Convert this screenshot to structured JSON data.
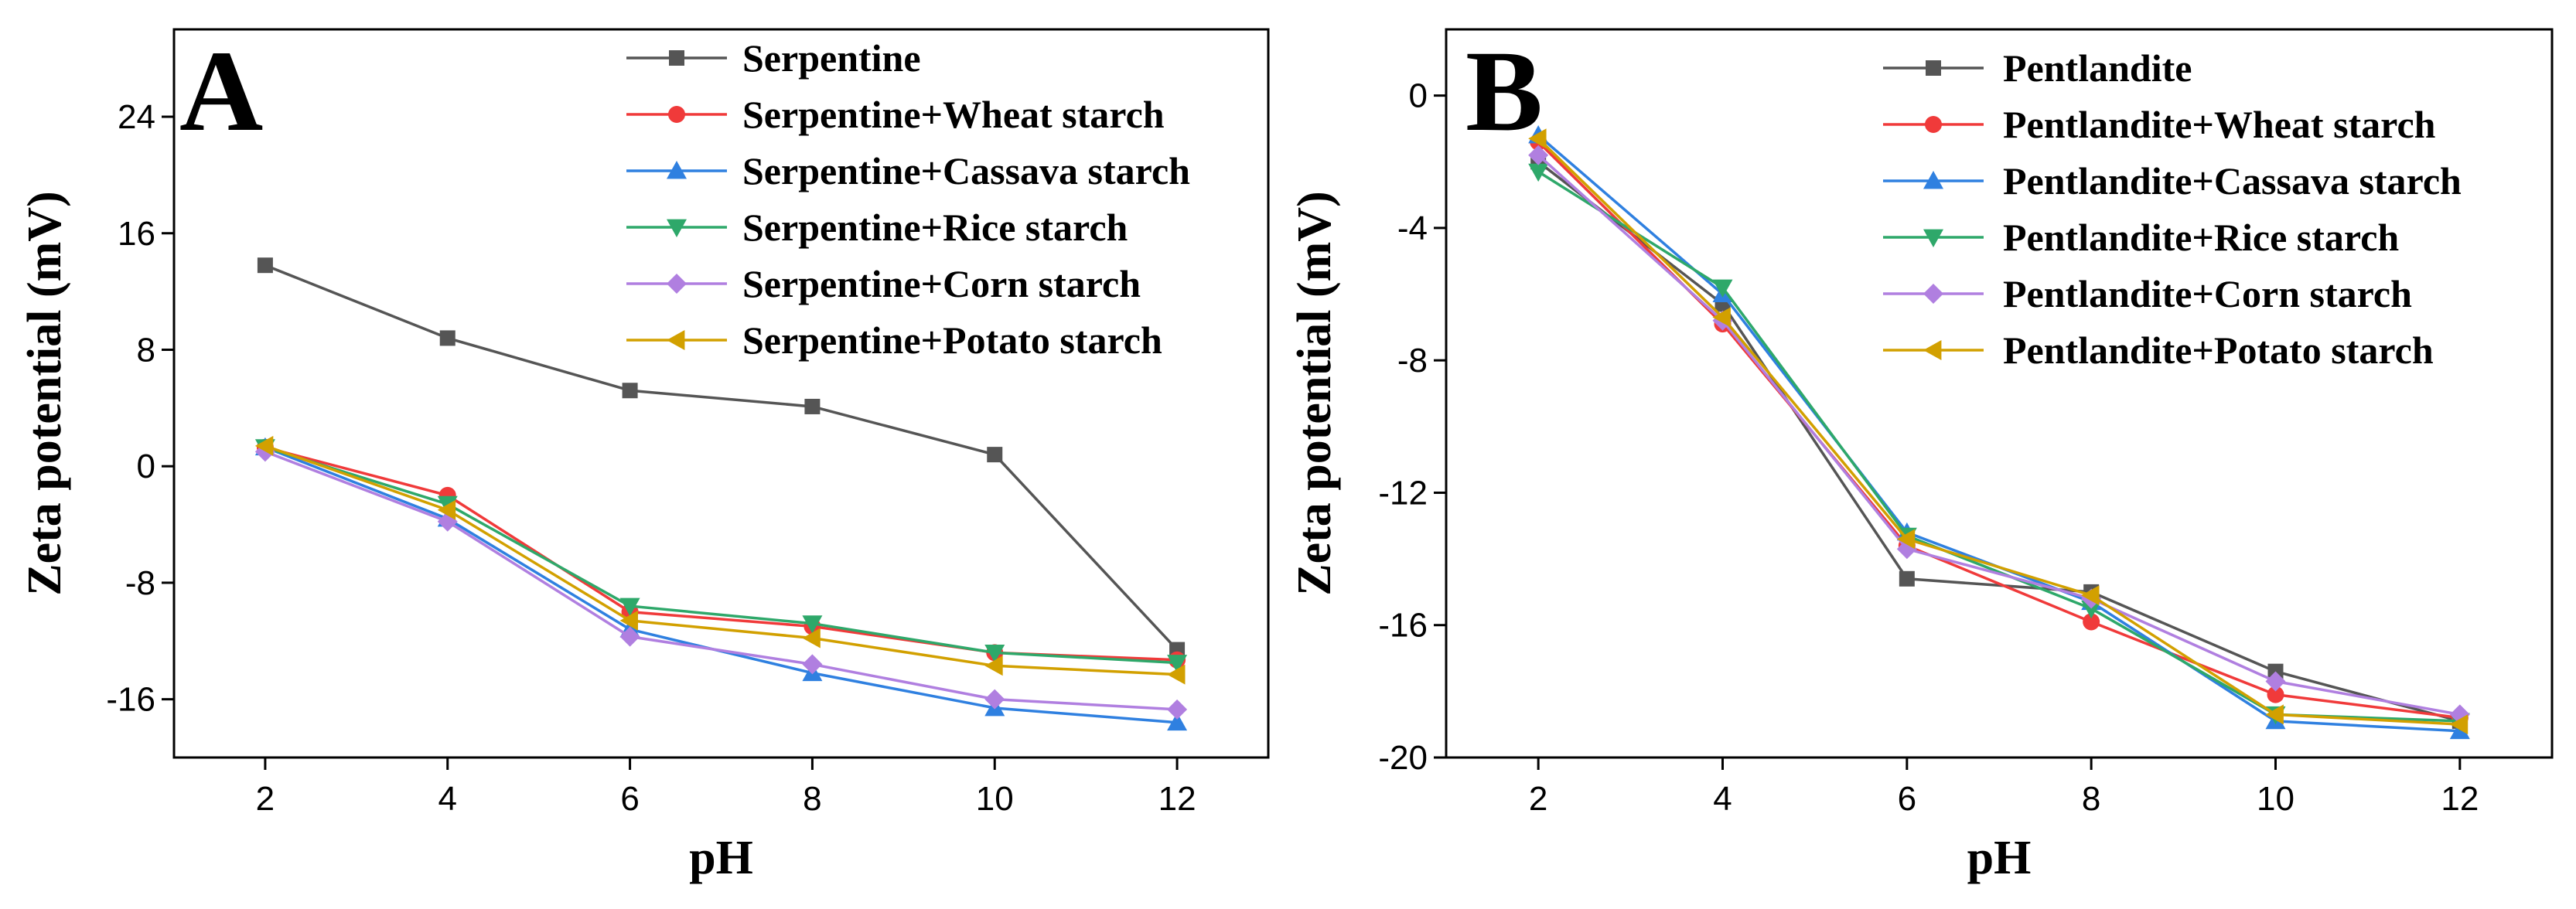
{
  "chart_data": [
    {
      "type": "line",
      "panel_label": "A",
      "title": "",
      "xlabel": "pH",
      "ylabel": "Zeta potential (mV)",
      "xlim": [
        1,
        13
      ],
      "ylim": [
        -20,
        30
      ],
      "xticks": [
        2,
        4,
        6,
        8,
        10,
        12
      ],
      "yticks": [
        -16,
        -8,
        0,
        8,
        16,
        24
      ],
      "legend_position": "top-right",
      "x": [
        2,
        4,
        6,
        8,
        10,
        12
      ],
      "series": [
        {
          "name": "Serpentine",
          "color": "#555555",
          "marker": "square",
          "values": [
            13.8,
            8.8,
            5.2,
            4.1,
            0.8,
            -12.6
          ]
        },
        {
          "name": "Serpentine+Wheat starch",
          "color": "#f03a3a",
          "marker": "circle",
          "values": [
            1.3,
            -2.0,
            -10.0,
            -11.0,
            -12.8,
            -13.3
          ]
        },
        {
          "name": "Serpentine+Cassava starch",
          "color": "#2f80e0",
          "marker": "triangle-up",
          "values": [
            1.3,
            -3.6,
            -11.2,
            -14.2,
            -16.6,
            -17.6
          ]
        },
        {
          "name": "Serpentine+Rice starch",
          "color": "#2ea86a",
          "marker": "triangle-down",
          "values": [
            1.3,
            -2.6,
            -9.6,
            -10.8,
            -12.8,
            -13.5
          ]
        },
        {
          "name": "Serpentine+Corn starch",
          "color": "#b07fe0",
          "marker": "diamond",
          "values": [
            1.0,
            -3.8,
            -11.7,
            -13.6,
            -16.0,
            -16.7
          ]
        },
        {
          "name": "Serpentine+Potato starch",
          "color": "#d2a000",
          "marker": "triangle-left",
          "values": [
            1.4,
            -3.0,
            -10.6,
            -11.8,
            -13.7,
            -14.3
          ]
        }
      ]
    },
    {
      "type": "line",
      "panel_label": "B",
      "title": "",
      "xlabel": "pH",
      "ylabel": "Zeta potential (mV)",
      "xlim": [
        1,
        13
      ],
      "ylim": [
        -20,
        2
      ],
      "xticks": [
        2,
        4,
        6,
        8,
        10,
        12
      ],
      "yticks": [
        -20,
        -16,
        -12,
        -8,
        -4,
        0
      ],
      "legend_position": "top-right",
      "x": [
        2,
        4,
        6,
        8,
        10,
        12
      ],
      "series": [
        {
          "name": "Pentlandite",
          "color": "#555555",
          "marker": "square",
          "values": [
            -2.0,
            -6.3,
            -14.6,
            -15.0,
            -17.4,
            -18.9
          ]
        },
        {
          "name": "Pentlandite+Wheat starch",
          "color": "#f03a3a",
          "marker": "circle",
          "values": [
            -1.4,
            -6.9,
            -13.6,
            -15.9,
            -18.1,
            -18.8
          ]
        },
        {
          "name": "Pentlandite+Cassava starch",
          "color": "#2f80e0",
          "marker": "triangle-up",
          "values": [
            -1.2,
            -6.0,
            -13.2,
            -15.3,
            -18.9,
            -19.2
          ]
        },
        {
          "name": "Pentlandite+Rice starch",
          "color": "#2ea86a",
          "marker": "triangle-down",
          "values": [
            -2.3,
            -5.8,
            -13.3,
            -15.5,
            -18.7,
            -18.9
          ]
        },
        {
          "name": "Pentlandite+Corn starch",
          "color": "#b07fe0",
          "marker": "diamond",
          "values": [
            -1.8,
            -6.8,
            -13.7,
            -15.2,
            -17.7,
            -18.7
          ]
        },
        {
          "name": "Pentlandite+Potato starch",
          "color": "#d2a000",
          "marker": "triangle-left",
          "values": [
            -1.3,
            -6.7,
            -13.4,
            -15.1,
            -18.7,
            -19.0
          ]
        }
      ]
    }
  ]
}
